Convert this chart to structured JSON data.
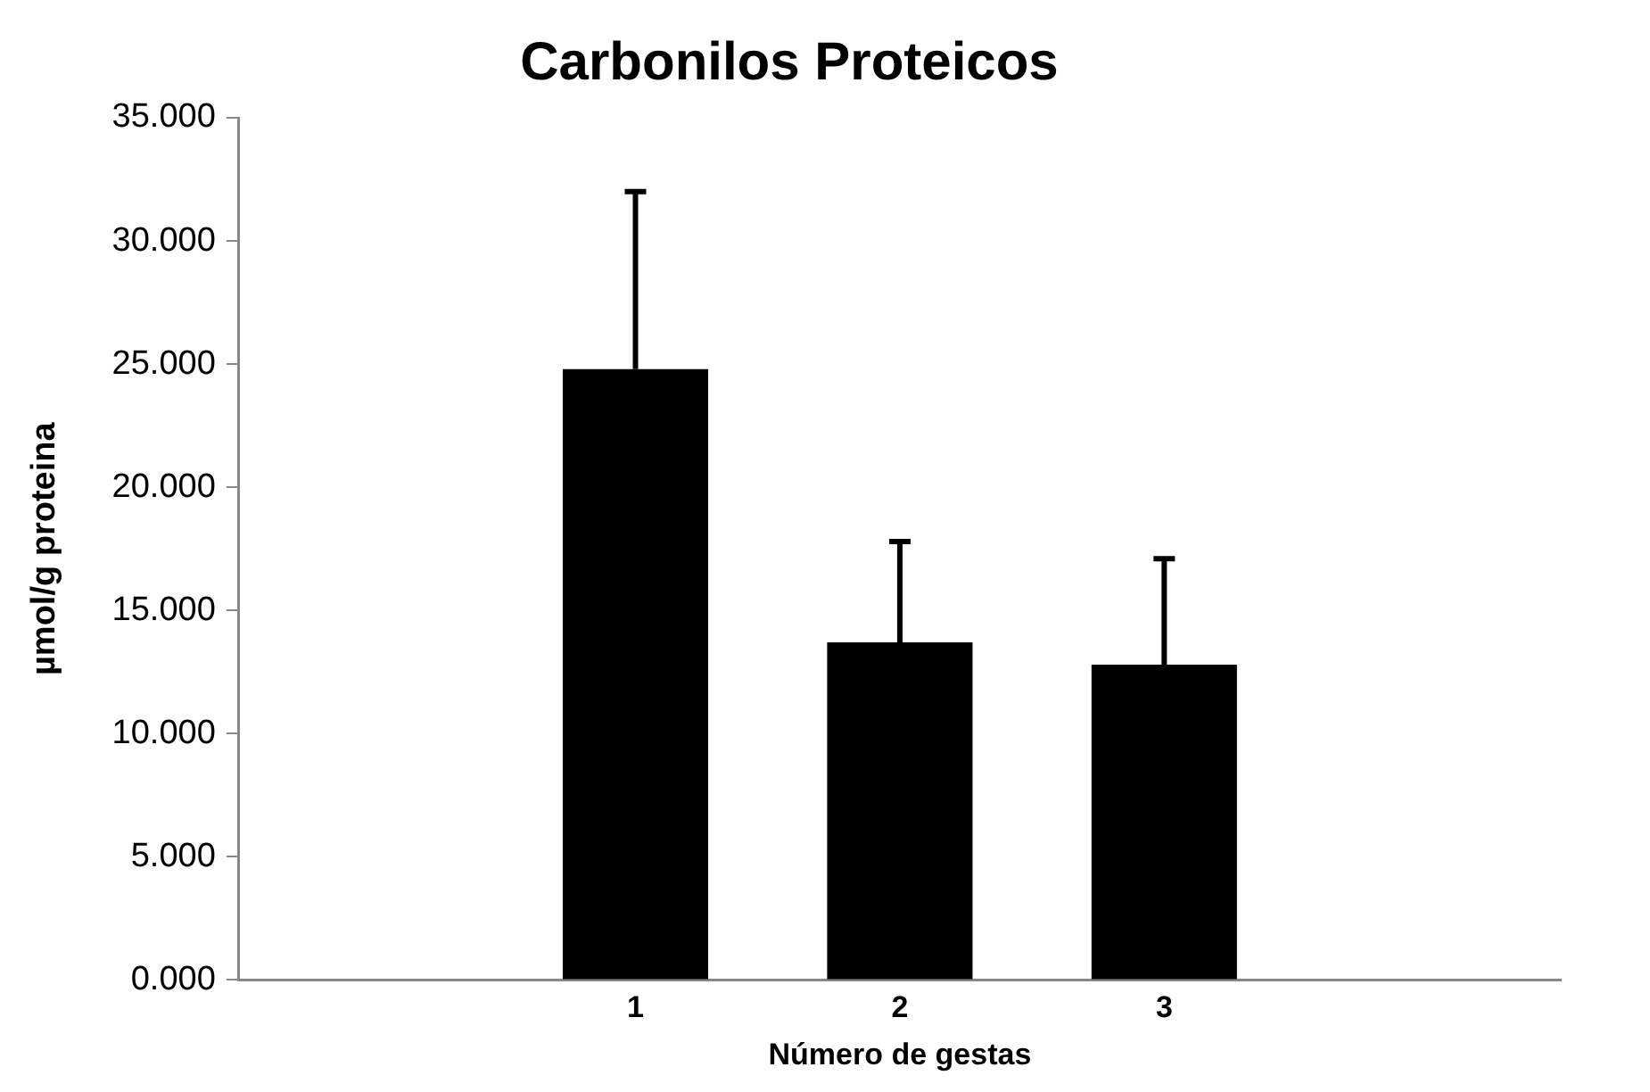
{
  "chart_data": {
    "type": "bar",
    "title": "Carbonilos Proteicos",
    "xlabel": "Número de gestas",
    "ylabel": "µmol/g proteina",
    "categories": [
      null,
      "1",
      "2",
      "3",
      null
    ],
    "values": [
      null,
      24.8,
      13.7,
      12.8,
      null
    ],
    "errors": [
      null,
      [
        24.8,
        32.0
      ],
      [
        13.7,
        17.8
      ],
      [
        12.8,
        17.1
      ],
      null
    ],
    "color": "#000000",
    "ylim": [
      0,
      35
    ],
    "yticks": [
      {
        "value": 0,
        "label": "0.000"
      },
      {
        "value": 5,
        "label": "5.000"
      },
      {
        "value": 10,
        "label": "10.000"
      },
      {
        "value": 15,
        "label": "15.000"
      },
      {
        "value": 20,
        "label": "20.000"
      },
      {
        "value": 25,
        "label": "25.000"
      },
      {
        "value": 30,
        "label": "30.000"
      },
      {
        "value": 35,
        "label": "35.000"
      }
    ],
    "grid": false,
    "legend": false
  }
}
